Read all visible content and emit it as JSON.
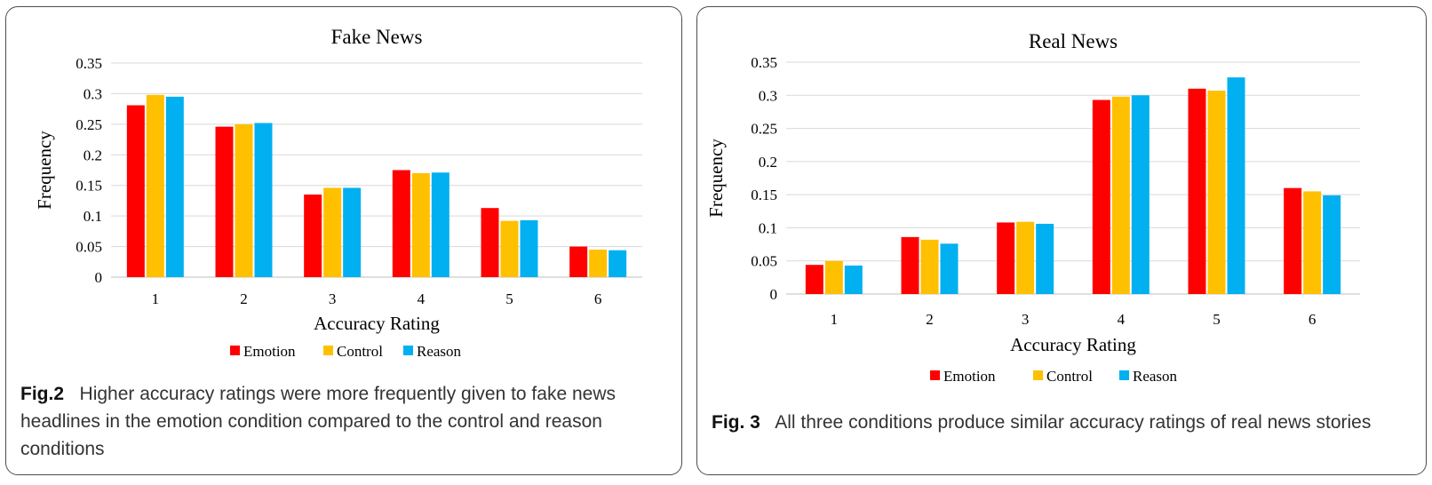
{
  "chart_data": [
    {
      "type": "bar",
      "title": "Fake News",
      "xlabel": "Accuracy Rating",
      "ylabel": "Frequency",
      "categories": [
        "1",
        "2",
        "3",
        "4",
        "5",
        "6"
      ],
      "yticks": [
        "0",
        "0.05",
        "0.1",
        "0.15",
        "0.2",
        "0.25",
        "0.3",
        "0.35"
      ],
      "ylim": [
        0,
        0.35
      ],
      "grid": true,
      "legend_position": "bottom",
      "series": [
        {
          "name": "Emotion",
          "color": "#ff0000",
          "values": [
            0.281,
            0.246,
            0.135,
            0.175,
            0.113,
            0.05
          ]
        },
        {
          "name": "Control",
          "color": "#ffc000",
          "values": [
            0.298,
            0.25,
            0.146,
            0.17,
            0.092,
            0.045
          ]
        },
        {
          "name": "Reason",
          "color": "#00b0f0",
          "values": [
            0.295,
            0.252,
            0.146,
            0.171,
            0.093,
            0.044
          ]
        }
      ]
    },
    {
      "type": "bar",
      "title": "Real News",
      "xlabel": "Accuracy Rating",
      "ylabel": "Frequency",
      "categories": [
        "1",
        "2",
        "3",
        "4",
        "5",
        "6"
      ],
      "yticks": [
        "0",
        "0.05",
        "0.1",
        "0.15",
        "0.2",
        "0.25",
        "0.3",
        "0.35"
      ],
      "ylim": [
        0,
        0.35
      ],
      "grid": true,
      "legend_position": "bottom",
      "series": [
        {
          "name": "Emotion",
          "color": "#ff0000",
          "values": [
            0.044,
            0.086,
            0.108,
            0.293,
            0.31,
            0.16
          ]
        },
        {
          "name": "Control",
          "color": "#ffc000",
          "values": [
            0.05,
            0.082,
            0.109,
            0.298,
            0.307,
            0.155
          ]
        },
        {
          "name": "Reason",
          "color": "#00b0f0",
          "values": [
            0.043,
            0.076,
            0.106,
            0.3,
            0.327,
            0.149
          ]
        }
      ]
    }
  ],
  "captions": [
    {
      "label": "Fig.2",
      "text": "Higher accuracy ratings were more frequently given to fake news headlines in the emotion condition compared to the control and reason conditions"
    },
    {
      "label": "Fig. 3",
      "text": "All three conditions produce similar accuracy ratings of real news stories"
    }
  ]
}
